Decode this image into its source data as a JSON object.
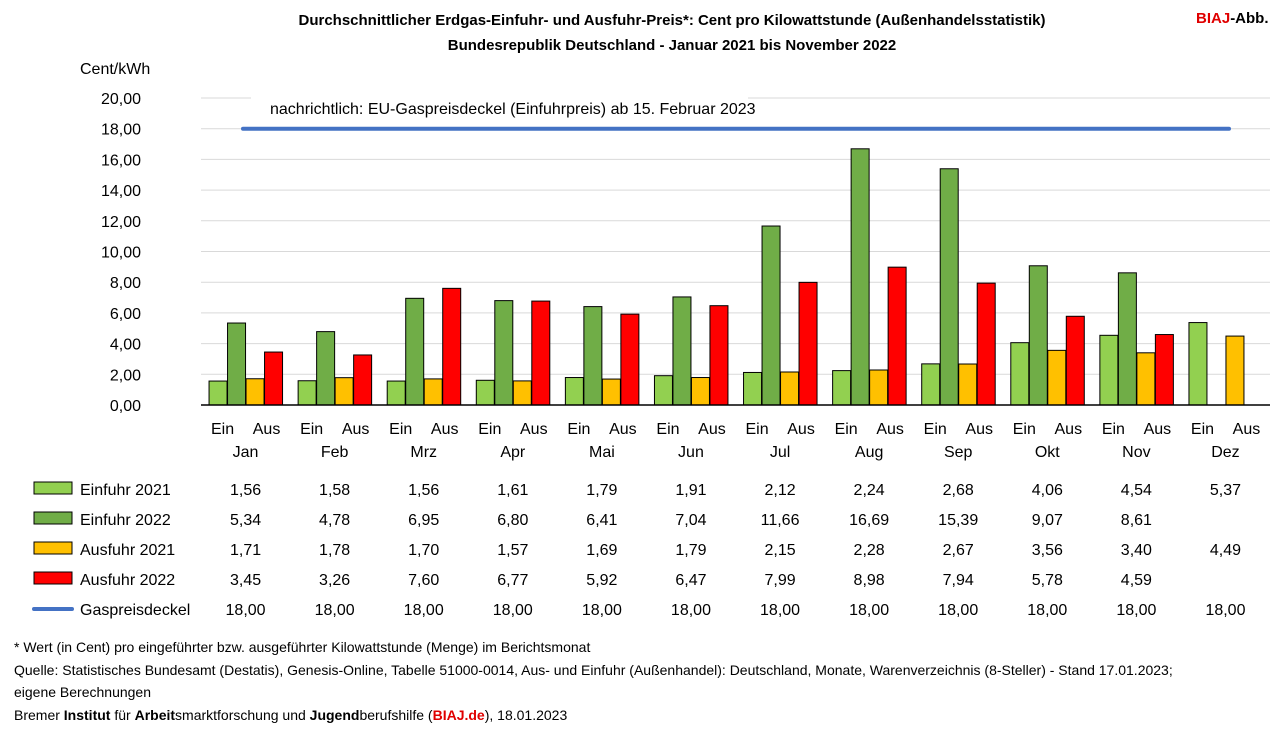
{
  "header": {
    "title_line1": "Durchschnittlicher Erdgas-Einfuhr- und Ausfuhr-Preis*: Cent pro Kilowattstunde  (Außenhandelsstatistik)",
    "title_line2": "Bundesrepublik Deutschland - Januar 2021 bis November 2022",
    "brand_red": "BIAJ",
    "brand_rest": "-Abb."
  },
  "chart_data": {
    "type": "bar",
    "ylabel": "Cent/kWh",
    "ylim": [
      0,
      20
    ],
    "yticks": [
      "0,00",
      "2,00",
      "4,00",
      "6,00",
      "8,00",
      "10,00",
      "12,00",
      "14,00",
      "16,00",
      "18,00",
      "20,00"
    ],
    "grid": true,
    "categories": [
      "Jan",
      "Feb",
      "Mrz",
      "Apr",
      "Mai",
      "Jun",
      "Jul",
      "Aug",
      "Sep",
      "Okt",
      "Nov",
      "Dez"
    ],
    "sub_labels": [
      "Ein",
      "Aus"
    ],
    "annotation": "nachrichtlich: EU-Gaspreisdeckel (Einfuhrpreis) ab 15. Februar 2023",
    "series": [
      {
        "name": "Einfuhr 2021",
        "kind": "bar",
        "color": "#92d050",
        "values": [
          1.56,
          1.58,
          1.56,
          1.61,
          1.79,
          1.91,
          2.12,
          2.24,
          2.68,
          4.06,
          4.54,
          5.37
        ],
        "labels": [
          "1,56",
          "1,58",
          "1,56",
          "1,61",
          "1,79",
          "1,91",
          "2,12",
          "2,24",
          "2,68",
          "4,06",
          "4,54",
          "5,37"
        ]
      },
      {
        "name": "Einfuhr 2022",
        "kind": "bar",
        "color": "#70ad47",
        "values": [
          5.34,
          4.78,
          6.95,
          6.8,
          6.41,
          7.04,
          11.66,
          16.69,
          15.39,
          9.07,
          8.61,
          null
        ],
        "labels": [
          "5,34",
          "4,78",
          "6,95",
          "6,80",
          "6,41",
          "7,04",
          "11,66",
          "16,69",
          "15,39",
          "9,07",
          "8,61",
          ""
        ]
      },
      {
        "name": "Ausfuhr 2021",
        "kind": "bar",
        "color": "#ffc000",
        "values": [
          1.71,
          1.78,
          1.7,
          1.57,
          1.69,
          1.79,
          2.15,
          2.28,
          2.67,
          3.56,
          3.4,
          4.49
        ],
        "labels": [
          "1,71",
          "1,78",
          "1,70",
          "1,57",
          "1,69",
          "1,79",
          "2,15",
          "2,28",
          "2,67",
          "3,56",
          "3,40",
          "4,49"
        ]
      },
      {
        "name": "Ausfuhr 2022",
        "kind": "bar",
        "color": "#ff0000",
        "values": [
          3.45,
          3.26,
          7.6,
          6.77,
          5.92,
          6.47,
          7.99,
          8.98,
          7.94,
          5.78,
          4.59,
          null
        ],
        "labels": [
          "3,45",
          "3,26",
          "7,60",
          "6,77",
          "5,92",
          "6,47",
          "7,99",
          "8,98",
          "7,94",
          "5,78",
          "4,59",
          ""
        ]
      },
      {
        "name": "Gaspreisdeckel",
        "kind": "line",
        "color": "#4472c4",
        "values": [
          18,
          18,
          18,
          18,
          18,
          18,
          18,
          18,
          18,
          18,
          18,
          18
        ],
        "labels": [
          "18,00",
          "18,00",
          "18,00",
          "18,00",
          "18,00",
          "18,00",
          "18,00",
          "18,00",
          "18,00",
          "18,00",
          "18,00",
          "18,00"
        ]
      }
    ]
  },
  "footer": {
    "note": "* Wert (in Cent) pro eingeführter bzw. ausgeführter Kilowattstunde (Menge) im Berichtsmonat",
    "source_line1": "Quelle: Statistisches Bundesamt (Destatis), Genesis-Online, Tabelle 51000-0014, Aus- und Einfuhr (Außenhandel): Deutschland, Monate, Warenverzeichnis (8-Steller) - Stand 17.01.2023;",
    "source_line2": "eigene Berechnungen",
    "credit": {
      "w1": "Bremer ",
      "w2": "Institut",
      "w3": " für ",
      "w4": "Arbeit",
      "w5": "smarktforschung und ",
      "w6": "Jugend",
      "w7": "berufshilfe (",
      "w8": "BIAJ.de",
      "w9": "), 18.01.2023"
    }
  }
}
